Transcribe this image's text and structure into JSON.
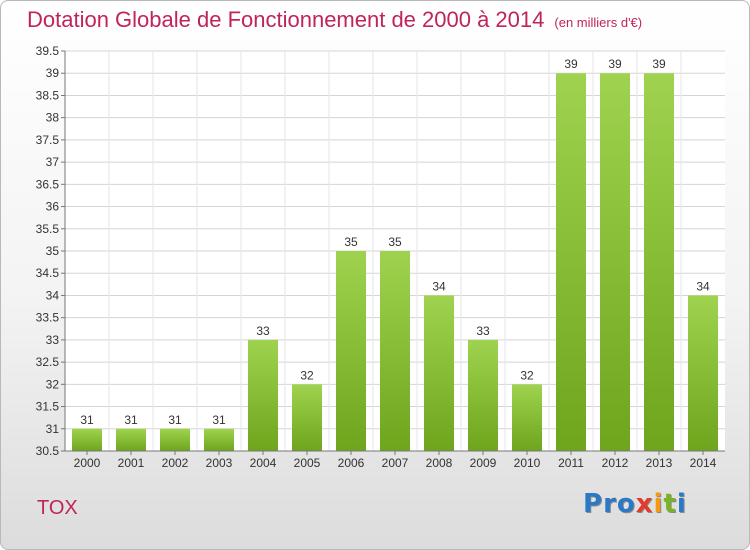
{
  "chart_data": {
    "type": "bar",
    "title": "Dotation Globale de Fonctionnement de 2000 à 2014",
    "unit_label": "(en milliers d'€)",
    "categories": [
      "2000",
      "2001",
      "2002",
      "2003",
      "2004",
      "2005",
      "2006",
      "2007",
      "2008",
      "2009",
      "2010",
      "2011",
      "2012",
      "2013",
      "2014"
    ],
    "values": [
      31,
      31,
      31,
      31,
      33,
      32,
      35,
      35,
      34,
      33,
      32,
      39,
      39,
      39,
      34
    ],
    "ylim": [
      30.5,
      39.5
    ],
    "yticks": [
      "30.5",
      "31",
      "31.5",
      "32",
      "32.5",
      "33",
      "33.5",
      "34",
      "34.5",
      "35",
      "35.5",
      "36",
      "36.5",
      "37",
      "37.5",
      "38",
      "38.5",
      "39",
      "39.5"
    ],
    "grid": true,
    "bar_color_light": "#9fd34f",
    "bar_color_dark": "#6ea51d"
  },
  "commune": "TOX",
  "logo": {
    "letters": [
      "P",
      "r",
      "o",
      "x",
      "i",
      "t",
      "i"
    ],
    "colors": [
      "#2a78c6",
      "#2a78c6",
      "#2a78c6",
      "#e23b2b",
      "#f39a12",
      "#79b424",
      "#2a78c6"
    ]
  }
}
